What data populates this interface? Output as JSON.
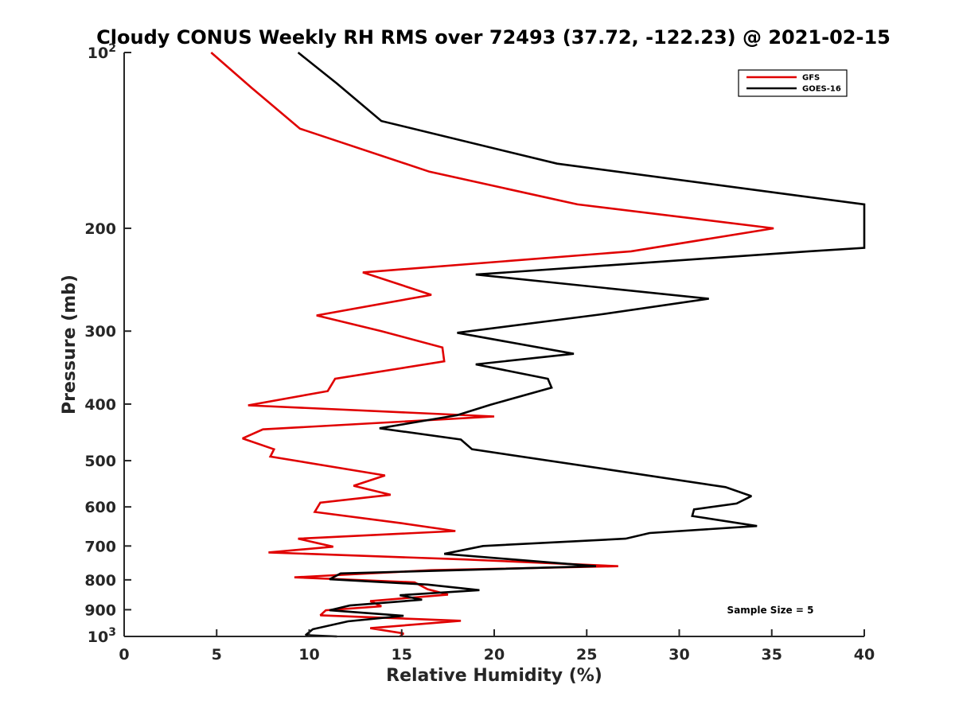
{
  "chart_data": {
    "type": "line",
    "title": "Cloudy CONUS Weekly RH RMS over 72493 (37.72, -122.23) @ 2021-02-15",
    "xlabel": "Relative Humidity (%)",
    "ylabel": "Pressure (mb)",
    "xlim": [
      0,
      40
    ],
    "ylim": [
      100,
      1000
    ],
    "y_scale": "log",
    "y_reversed": true,
    "grid": false,
    "legend_position": "top-right",
    "x_ticks": [
      "0",
      "5",
      "10",
      "15",
      "20",
      "25",
      "30",
      "35",
      "40"
    ],
    "y_ticks": [
      {
        "value": 100,
        "base": "10",
        "exp": "2"
      },
      {
        "value": 200,
        "label": "200"
      },
      {
        "value": 300,
        "label": "300"
      },
      {
        "value": 400,
        "label": "400"
      },
      {
        "value": 500,
        "label": "500"
      },
      {
        "value": 600,
        "label": "600"
      },
      {
        "value": 700,
        "label": "700"
      },
      {
        "value": 800,
        "label": "800"
      },
      {
        "value": 900,
        "label": "900"
      },
      {
        "value": 1000,
        "base": "10",
        "exp": "3"
      }
    ],
    "annotation": "Sample Size = 5",
    "series": [
      {
        "name": "GFS",
        "color": "#e00000",
        "points": [
          [
            4.7,
            100
          ],
          [
            6.9,
            115
          ],
          [
            9.5,
            135
          ],
          [
            16.5,
            160
          ],
          [
            24.5,
            182
          ],
          [
            35.1,
            200
          ],
          [
            27.4,
            219
          ],
          [
            12.9,
            238
          ],
          [
            16.6,
            260
          ],
          [
            10.4,
            282
          ],
          [
            13.9,
            300
          ],
          [
            17.2,
            320
          ],
          [
            17.3,
            338
          ],
          [
            11.4,
            362
          ],
          [
            11.0,
            380
          ],
          [
            6.7,
            402
          ],
          [
            20.0,
            420
          ],
          [
            7.5,
            442
          ],
          [
            6.4,
            458
          ],
          [
            8.1,
            478
          ],
          [
            7.9,
            492
          ],
          [
            14.1,
            530
          ],
          [
            12.4,
            552
          ],
          [
            14.4,
            572
          ],
          [
            10.6,
            590
          ],
          [
            10.3,
            612
          ],
          [
            15.0,
            640
          ],
          [
            17.9,
            660
          ],
          [
            9.4,
            680
          ],
          [
            11.3,
            702
          ],
          [
            7.8,
            718
          ],
          [
            18.4,
            738
          ],
          [
            26.7,
            758
          ],
          [
            16.6,
            770
          ],
          [
            9.2,
            792
          ],
          [
            15.7,
            808
          ],
          [
            16.4,
            830
          ],
          [
            17.5,
            848
          ],
          [
            13.3,
            870
          ],
          [
            13.9,
            888
          ],
          [
            10.9,
            902
          ],
          [
            10.6,
            920
          ],
          [
            18.2,
            940
          ],
          [
            13.3,
            968
          ],
          [
            15.1,
            988
          ],
          [
            14.9,
            1000
          ]
        ]
      },
      {
        "name": "GOES-16",
        "color": "#000000",
        "points": [
          [
            9.4,
            100
          ],
          [
            11.5,
            113
          ],
          [
            13.9,
            131
          ],
          [
            23.4,
            155
          ],
          [
            36.5,
            176
          ],
          [
            40.0,
            182
          ],
          [
            40.0,
            216
          ],
          [
            37.0,
            219
          ],
          [
            19.0,
            240
          ],
          [
            31.6,
            264
          ],
          [
            25.7,
            281
          ],
          [
            18.0,
            302
          ],
          [
            24.3,
            328
          ],
          [
            19.0,
            342
          ],
          [
            22.9,
            362
          ],
          [
            23.1,
            375
          ],
          [
            19.8,
            401
          ],
          [
            18.0,
            418
          ],
          [
            13.8,
            440
          ],
          [
            18.2,
            460
          ],
          [
            18.8,
            478
          ],
          [
            26.2,
            518
          ],
          [
            32.5,
            555
          ],
          [
            33.9,
            575
          ],
          [
            33.1,
            592
          ],
          [
            30.8,
            606
          ],
          [
            30.7,
            622
          ],
          [
            34.2,
            647
          ],
          [
            28.4,
            665
          ],
          [
            27.1,
            680
          ],
          [
            19.4,
            700
          ],
          [
            17.3,
            722
          ],
          [
            25.5,
            758
          ],
          [
            11.7,
            780
          ],
          [
            11.1,
            798
          ],
          [
            16.4,
            815
          ],
          [
            19.2,
            833
          ],
          [
            14.9,
            850
          ],
          [
            16.1,
            865
          ],
          [
            12.2,
            885
          ],
          [
            11.1,
            902
          ],
          [
            15.1,
            922
          ],
          [
            12.1,
            942
          ],
          [
            10.2,
            972
          ],
          [
            9.8,
            995
          ],
          [
            11.5,
            1000
          ]
        ]
      }
    ]
  }
}
